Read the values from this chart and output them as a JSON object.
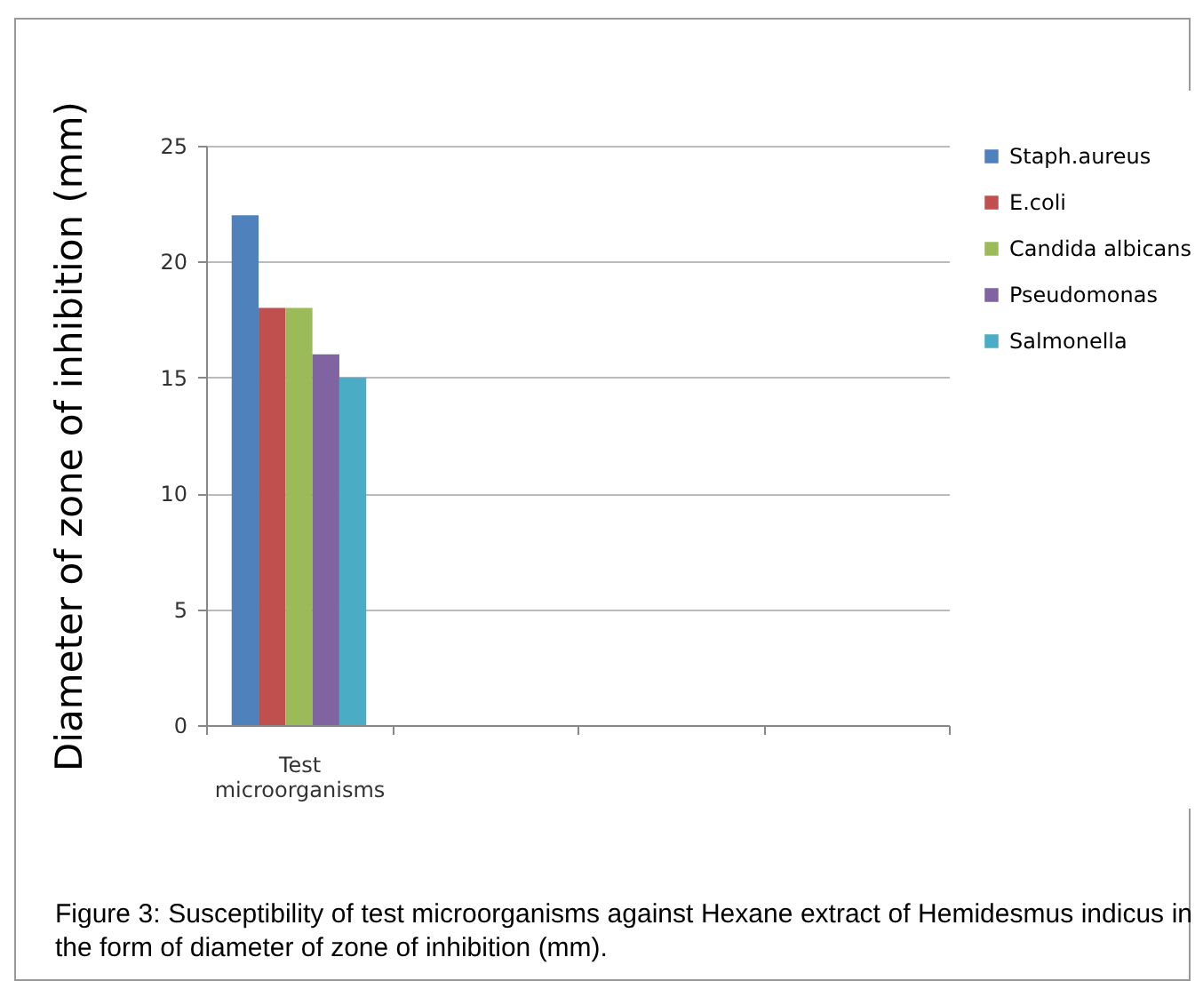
{
  "chart_data": {
    "type": "bar",
    "ylabel": "Diameter of zone of inhibition (mm)",
    "categories": [
      "Test microorganisms",
      null,
      null,
      null
    ],
    "series": [
      {
        "name": "Staph.aureus",
        "color": "#4f81bd",
        "values": [
          22,
          null,
          null,
          null
        ]
      },
      {
        "name": "E.coli",
        "color": "#c0504d",
        "values": [
          18,
          null,
          null,
          null
        ]
      },
      {
        "name": "Candida albicans",
        "color": "#9bbb59",
        "values": [
          18,
          null,
          null,
          null
        ]
      },
      {
        "name": "Pseudomonas",
        "color": "#8064a2",
        "values": [
          16,
          null,
          null,
          null
        ]
      },
      {
        "name": "Salmonella",
        "color": "#4bacc6",
        "values": [
          15,
          null,
          null,
          null
        ]
      }
    ],
    "ylim": [
      0,
      25
    ],
    "yticks": [
      0,
      5,
      10,
      15,
      20,
      25
    ],
    "grid": "y",
    "legend": "right",
    "annotations": [
      "Figure 3: Susceptibility of test microorganisms against Hexane extract of Hemidesmus indicus in the form of diameter of zone of inhibition (mm)."
    ]
  }
}
